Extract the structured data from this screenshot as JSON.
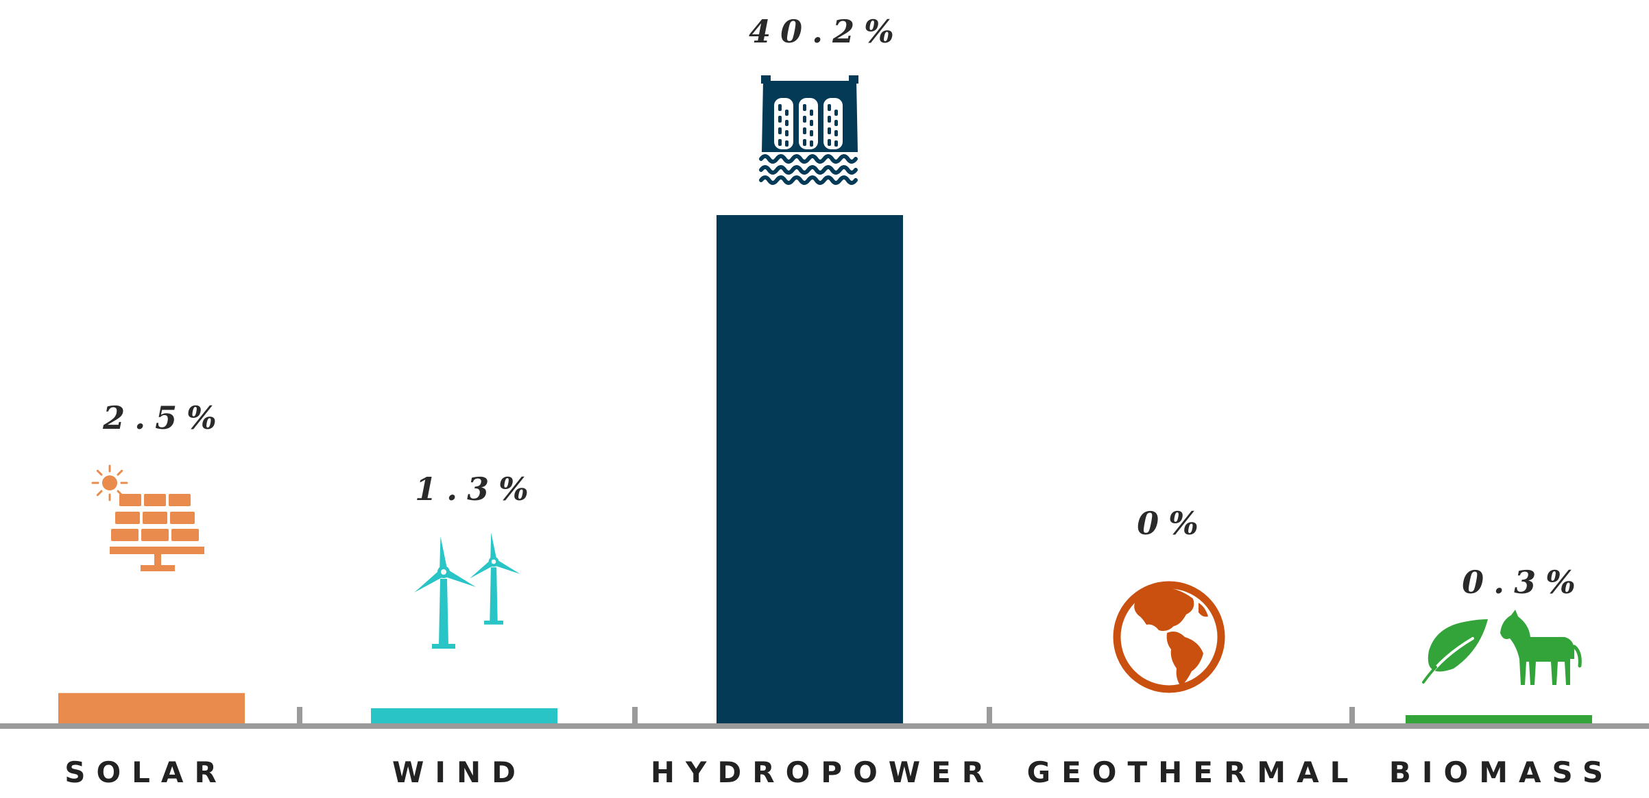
{
  "chart_data": {
    "type": "bar",
    "title": "",
    "xlabel": "",
    "ylabel": "",
    "ylim": [
      0,
      40.2
    ],
    "categories": [
      "SOLAR",
      "WIND",
      "HYDROPOWER",
      "GEOTHERMAL",
      "BIOMASS"
    ],
    "values": [
      2.5,
      1.3,
      40.2,
      0,
      0.3
    ],
    "value_labels": [
      "2.5%",
      "1.3%",
      "40.2%",
      "0%",
      "0.3%"
    ],
    "colors": [
      "#e88b4c",
      "#29c4c6",
      "#053a57",
      "#c9500f",
      "#33a43a"
    ],
    "icons": [
      "solar-panel-icon",
      "wind-turbine-icon",
      "dam-icon",
      "globe-icon",
      "leaf-horse-icon"
    ],
    "axis_color": "#9a9a9a"
  }
}
